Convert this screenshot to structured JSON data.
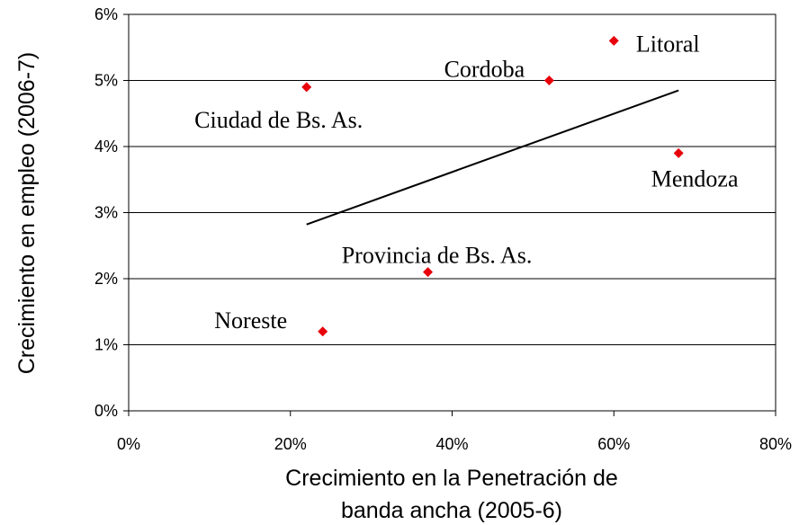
{
  "chart_data": {
    "type": "scatter",
    "x_label": [
      "Crecimiento en la Penetración de",
      "banda ancha (2005-6)"
    ],
    "y_label": "Crecimiento en empleo (2006-7)",
    "series": [
      {
        "color": "#e8000b",
        "names": [
          "Ciudad de Bs. As.",
          "Noreste",
          "Provincia de Bs. As.",
          "Cordoba",
          "Litoral",
          "Mendoza"
        ],
        "x": [
          22,
          24,
          37,
          52,
          60,
          68
        ],
        "values": [
          4.9,
          1.2,
          2.1,
          5.0,
          5.6,
          3.9
        ]
      }
    ],
    "trendline": {
      "color": "#000000",
      "x": [
        22,
        68
      ],
      "values": [
        2.82,
        4.85
      ]
    },
    "xlim": [
      0,
      80
    ],
    "xticks": [
      {
        "value": 0,
        "label": "0%"
      },
      {
        "value": 20,
        "label": "20%"
      },
      {
        "value": 40,
        "label": "40%"
      },
      {
        "value": 60,
        "label": "60%"
      },
      {
        "value": 80,
        "label": "80%"
      }
    ],
    "ylim": [
      0,
      6
    ],
    "yticks": [
      {
        "value": 0,
        "label": "0%"
      },
      {
        "value": 1,
        "label": "1%"
      },
      {
        "value": 2,
        "label": "2%"
      },
      {
        "value": 3,
        "label": "3%"
      },
      {
        "value": 4,
        "label": "4%"
      },
      {
        "value": 5,
        "label": "5%"
      },
      {
        "value": 6,
        "label": "6%"
      }
    ],
    "grid": true
  }
}
